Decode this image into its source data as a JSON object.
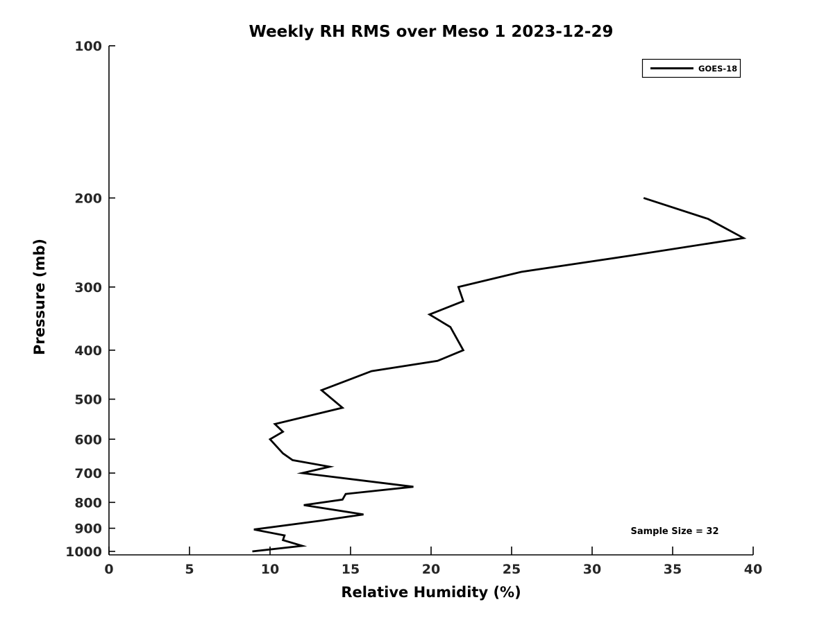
{
  "page": {
    "background": "#ffffff"
  },
  "chart_data": {
    "type": "line",
    "title": "Weekly RH RMS over Meso 1 2023-12-29",
    "xlabel": "Relative Humidity (%)",
    "ylabel": "Pressure (mb)",
    "xlim": [
      0,
      40
    ],
    "ylim": [
      100,
      1016
    ],
    "yscale": "log",
    "y_inverted": true,
    "grid": false,
    "xticks": [
      0,
      5,
      10,
      15,
      20,
      25,
      30,
      35,
      40
    ],
    "yticks": [
      100,
      200,
      300,
      400,
      500,
      600,
      700,
      800,
      900,
      1000
    ],
    "axis_color": "#000000",
    "tick_label_color": "#262626",
    "legend": {
      "position": "upper right",
      "entries": [
        {
          "label": "GOES-18",
          "color": "#000000",
          "line_width": 3
        }
      ]
    },
    "annotation": {
      "text": "Sample Size = 32"
    },
    "series": [
      {
        "name": "GOES-18",
        "color": "#000000",
        "line_width": 2.8,
        "pressure_mb": [
          200,
          220,
          240,
          260,
          280,
          300,
          320,
          340,
          360,
          400,
          420,
          440,
          480,
          520,
          560,
          580,
          600,
          640,
          660,
          680,
          700,
          745,
          770,
          790,
          810,
          845,
          870,
          905,
          930,
          950,
          975,
          1000
        ],
        "rh_percent": [
          33.2,
          37.2,
          39.4,
          32.4,
          25.6,
          21.7,
          22.0,
          19.9,
          21.2,
          22.0,
          20.4,
          16.3,
          13.2,
          14.5,
          10.3,
          10.8,
          10.0,
          10.8,
          11.4,
          13.7,
          12.0,
          18.9,
          14.7,
          14.5,
          12.1,
          15.8,
          13.1,
          9.0,
          10.9,
          10.8,
          12.0,
          8.9
        ]
      }
    ]
  }
}
